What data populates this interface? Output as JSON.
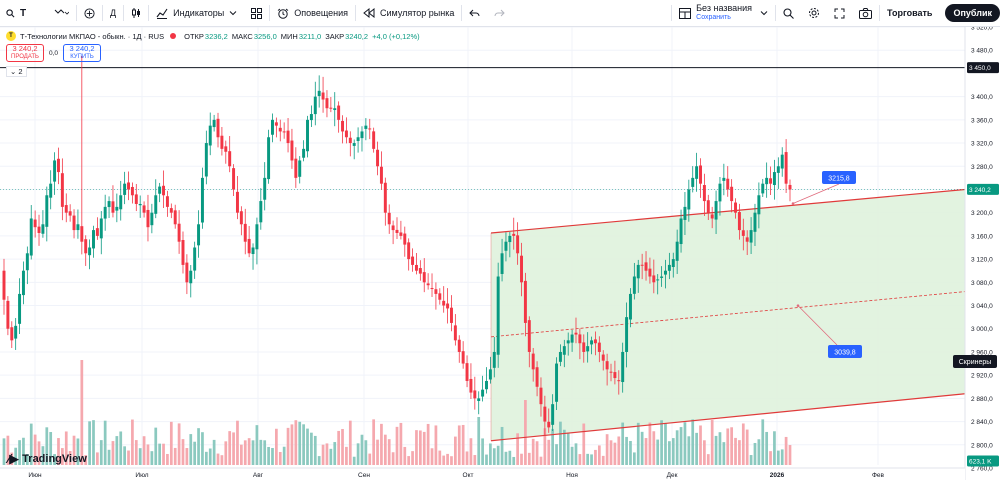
{
  "toolbar": {
    "symbol": "T",
    "interval": "Д",
    "indicators_label": "Индикаторы",
    "alerts_label": "Оповещения",
    "replay_label": "Симулятор рынка",
    "layout_name": "Без названия",
    "layout_saved": "Сохранить",
    "trade_label": "Торговать",
    "publish_label": "Опублик"
  },
  "legend": {
    "title": "Т-Технологии МКПАО - обыкн. · 1Д · RUS",
    "open_label": "ОТКР",
    "open": "3236,2",
    "high_label": "МАКС",
    "high": "3256,0",
    "low_label": "МИН",
    "low": "3211,0",
    "close_label": "ЗАКР",
    "close": "3240,2",
    "change": "+4,0 (+0,12%)",
    "sell_price": "3 240,2",
    "sell_label": "ПРОДАТЬ",
    "buy_price": "3 240,2",
    "buy_label": "КУПИТЬ",
    "spread": "0,0",
    "collapse_count": "2"
  },
  "branding": {
    "text": "TradingView"
  },
  "colors": {
    "up": "#089981",
    "down": "#f23645",
    "vol_up": "#8bc9bf",
    "vol_down": "#f5a8ae",
    "channel_line": "#e03a3a",
    "channel_fill": "#dff2dd",
    "label_blue": "#2962ff",
    "grid": "#f0f3fa"
  },
  "chart_data": {
    "type": "candlestick",
    "symbol": "Т-Технологии МКПАО - обыкн.",
    "interval": "1Д",
    "yaxis": {
      "ticks": [
        "3 520,0",
        "3 480,0",
        "3 400,0",
        "3 360,0",
        "3 320,0",
        "3 280,0",
        "3 240,0",
        "3 200,0",
        "3 160,0",
        "3 120,0",
        "3 080,0",
        "3 040,0",
        "3 000,0",
        "2 960,0",
        "2 920,0",
        "2 880,0",
        "2 840,0",
        "2 800,0",
        "2 760,0"
      ],
      "range": [
        2760,
        3520
      ]
    },
    "xaxis": {
      "ticks": [
        "Июн",
        "Июл",
        "Авг",
        "Сен",
        "Окт",
        "Ноя",
        "Дек",
        "2026",
        "Фев"
      ]
    },
    "last_price_label": "3 240,2",
    "high_line_label": "3 450,0",
    "volume_label": "623,1 K",
    "screener_label": "Скринеры",
    "channel": {
      "upper": [
        [
          491,
          3165
        ],
        [
          965,
          3240
        ]
      ],
      "lower": [
        [
          491,
          2807
        ],
        [
          965,
          2888
        ]
      ],
      "mid": [
        [
          491,
          2986
        ],
        [
          965,
          3064
        ]
      ]
    },
    "annotations": [
      {
        "text": "3215,8",
        "target_price": 3215.8
      },
      {
        "text": "3039,8",
        "target_price": 3039.8
      }
    ],
    "close_series": [
      3050,
      3000,
      2980,
      3005,
      3060,
      3100,
      3130,
      3190,
      3175,
      3165,
      3180,
      3230,
      3250,
      3290,
      3270,
      3210,
      3200,
      3195,
      3170,
      3180,
      3150,
      3130,
      3140,
      3170,
      3160,
      3190,
      3210,
      3220,
      3200,
      3210,
      3230,
      3250,
      3240,
      3230,
      3215,
      3215,
      3200,
      3175,
      3200,
      3230,
      3245,
      3230,
      3210,
      3200,
      3180,
      3150,
      3110,
      3080,
      3100,
      3140,
      3180,
      3260,
      3320,
      3350,
      3360,
      3330,
      3310,
      3305,
      3280,
      3240,
      3200,
      3180,
      3150,
      3130,
      3140,
      3180,
      3220,
      3260,
      3330,
      3360,
      3350,
      3340,
      3340,
      3320,
      3290,
      3260,
      3290,
      3310,
      3360,
      3370,
      3400,
      3410,
      3395,
      3380,
      3380,
      3380,
      3360,
      3340,
      3330,
      3320,
      3320,
      3330,
      3340,
      3350,
      3345,
      3310,
      3280,
      3250,
      3200,
      3180,
      3170,
      3165,
      3160,
      3145,
      3120,
      3110,
      3100,
      3095,
      3080,
      3075,
      3070,
      3060,
      3050,
      3040,
      3035,
      3010,
      2980,
      2960,
      2940,
      2910,
      2890,
      2880,
      2880,
      2895,
      2910,
      2930,
      2960,
      3090,
      3130,
      3150,
      3160,
      3160,
      3130,
      3080,
      3010,
      2960,
      2930,
      2900,
      2870,
      2840,
      2830,
      2870,
      2940,
      2960,
      2970,
      2980,
      2990,
      2990,
      2975,
      2960,
      2970,
      2980,
      2975,
      2960,
      2945,
      2930,
      2925,
      2915,
      2910,
      2960,
      3020,
      3060,
      3090,
      3110,
      3110,
      3100,
      3090,
      3080,
      3085,
      3090,
      3100,
      3110,
      3120,
      3150,
      3190,
      3210,
      3240,
      3260,
      3280,
      3250,
      3220,
      3200,
      3190,
      3220,
      3250,
      3260,
      3240,
      3220,
      3200,
      3170,
      3160,
      3150,
      3170,
      3200,
      3230,
      3250,
      3260,
      3250,
      3270,
      3280,
      3300,
      3250,
      3240
    ]
  }
}
